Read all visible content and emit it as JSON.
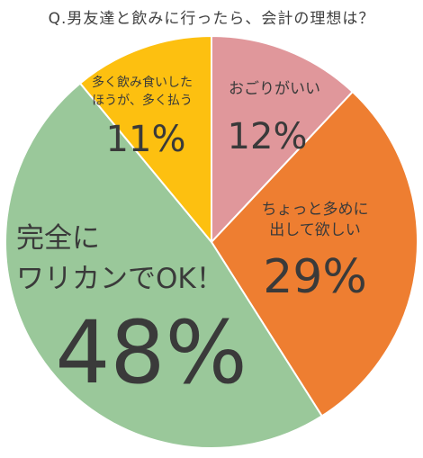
{
  "title": "Q.男友達と飲みに行ったら、会計の理想は？",
  "chart_data": {
    "type": "pie",
    "slices": [
      {
        "label": [
          "おごりがいい"
        ],
        "percent_label": "12%",
        "value": 12,
        "color": "#E0979B"
      },
      {
        "label": [
          "ちょっと多めに",
          "出して欲しい"
        ],
        "percent_label": "29%",
        "value": 29,
        "color": "#EE7E31"
      },
      {
        "label": [
          "完全に",
          "ワリカンでOK！"
        ],
        "percent_label": "48%",
        "value": 48,
        "color": "#9AC89A"
      },
      {
        "label": [
          "多く飲み食いした",
          "ほうが、多く払う"
        ],
        "percent_label": "11%",
        "value": 11,
        "color": "#FDC010"
      }
    ]
  }
}
